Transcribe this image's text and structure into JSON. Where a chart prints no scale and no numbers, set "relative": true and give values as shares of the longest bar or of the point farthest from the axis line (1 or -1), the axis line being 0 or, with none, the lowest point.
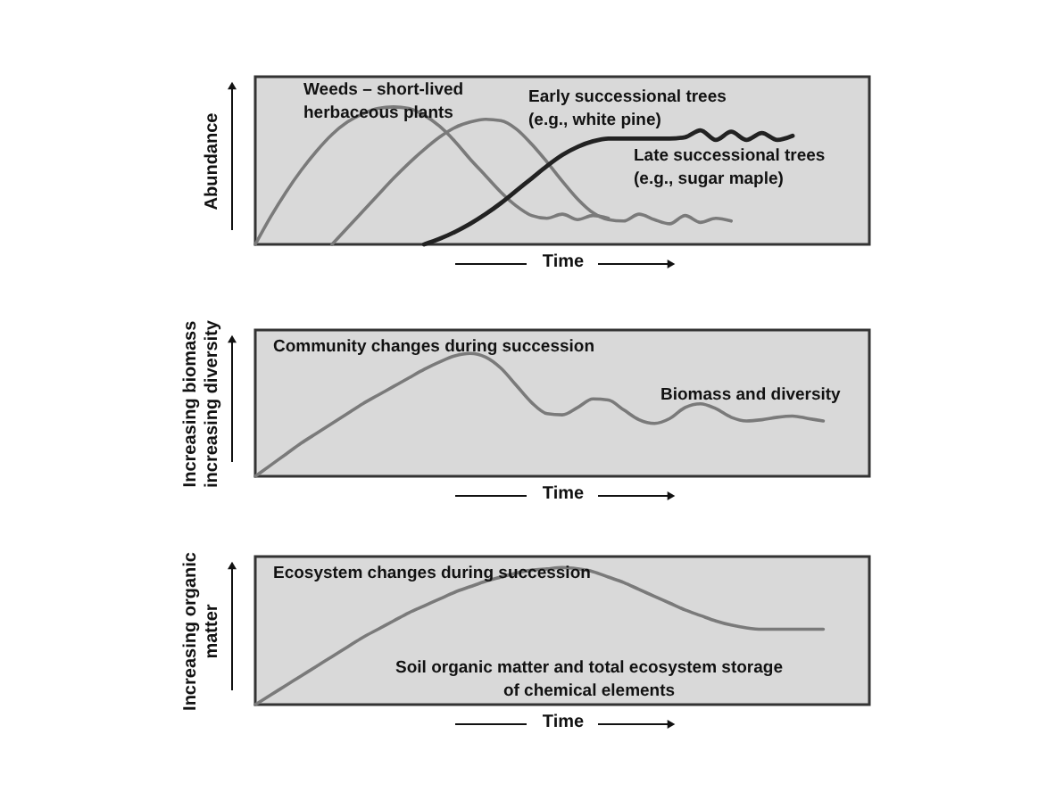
{
  "chart_data": [
    {
      "type": "line",
      "relative": true,
      "tick_labels": false,
      "xlabel": "Time",
      "ylabel": "Abundance",
      "categories": [
        null,
        null,
        null,
        null,
        null,
        null,
        null,
        null,
        null,
        null,
        null,
        null,
        null,
        null,
        null,
        null,
        null,
        null,
        null,
        null,
        null,
        null,
        null,
        null,
        null,
        null,
        null,
        null,
        null,
        null,
        null,
        null,
        null,
        null,
        null,
        null,
        null,
        null,
        null,
        null,
        null
      ],
      "series": [
        {
          "name": "Weeds – short-lived\nherbaceous plants",
          "color": "#7a7a7a",
          "values": [
            0,
            0.2,
            0.38,
            0.54,
            0.68,
            0.8,
            0.89,
            0.95,
            0.99,
            1.0,
            0.99,
            0.94,
            0.86,
            0.75,
            0.62,
            0.5,
            0.38,
            0.28,
            0.21,
            0.19,
            0.22,
            0.18,
            0.21,
            0.19,
            null,
            null,
            null,
            null,
            null,
            null,
            null,
            null,
            null,
            null,
            null,
            null,
            null,
            null,
            null,
            null,
            null
          ]
        },
        {
          "name": "Early successional trees\n(e.g., white pine)",
          "color": "#7a7a7a",
          "values": [
            null,
            null,
            null,
            null,
            null,
            0,
            0.12,
            0.24,
            0.36,
            0.48,
            0.59,
            0.69,
            0.78,
            0.85,
            0.89,
            0.91,
            0.9,
            0.84,
            0.73,
            0.6,
            0.46,
            0.33,
            0.23,
            0.18,
            0.17,
            0.22,
            0.18,
            0.15,
            0.21,
            0.16,
            0.19,
            0.17,
            null,
            null,
            null,
            null,
            null,
            null,
            null,
            null,
            null
          ]
        },
        {
          "name": "Late successional trees\n(e.g., sugar maple)",
          "color": "#222222",
          "values": [
            null,
            null,
            null,
            null,
            null,
            null,
            null,
            null,
            null,
            null,
            null,
            0,
            0.04,
            0.09,
            0.15,
            0.22,
            0.3,
            0.39,
            0.48,
            0.57,
            0.65,
            0.71,
            0.75,
            0.77,
            0.77,
            0.77,
            0.77,
            0.77,
            0.78,
            0.83,
            0.76,
            0.82,
            0.76,
            0.81,
            0.76,
            0.79,
            null,
            null,
            null,
            null,
            null
          ]
        }
      ]
    },
    {
      "type": "line",
      "relative": true,
      "tick_labels": false,
      "title": "Community changes during succession",
      "xlabel": "Time",
      "ylabel": "Increasing biomass\nincreasing diversity",
      "categories": [
        null,
        null,
        null,
        null,
        null,
        null,
        null,
        null,
        null,
        null,
        null,
        null,
        null,
        null,
        null,
        null,
        null,
        null,
        null,
        null,
        null,
        null,
        null,
        null,
        null,
        null,
        null,
        null,
        null,
        null,
        null,
        null,
        null,
        null,
        null,
        null,
        null,
        null,
        null,
        null,
        null
      ],
      "series": [
        {
          "name": "Biomass and diversity",
          "color": "#7a7a7a",
          "values": [
            0,
            0.09,
            0.18,
            0.27,
            0.35,
            0.43,
            0.51,
            0.59,
            0.66,
            0.73,
            0.8,
            0.87,
            0.93,
            0.98,
            1.0,
            0.97,
            0.88,
            0.74,
            0.6,
            0.51,
            0.5,
            0.56,
            0.63,
            0.62,
            0.54,
            0.46,
            0.43,
            0.47,
            0.56,
            0.59,
            0.55,
            0.48,
            0.45,
            0.46,
            0.48,
            0.49,
            0.47,
            0.45,
            null,
            null,
            null
          ]
        }
      ]
    },
    {
      "type": "line",
      "relative": true,
      "tick_labels": false,
      "title": "Ecosystem changes during succession",
      "xlabel": "Time",
      "ylabel": "Increasing organic\nmatter",
      "categories": [
        null,
        null,
        null,
        null,
        null,
        null,
        null,
        null,
        null,
        null,
        null,
        null,
        null,
        null,
        null,
        null,
        null,
        null,
        null,
        null,
        null,
        null,
        null,
        null,
        null,
        null,
        null,
        null,
        null,
        null,
        null,
        null,
        null,
        null,
        null,
        null,
        null,
        null,
        null,
        null,
        null
      ],
      "series": [
        {
          "name": "Soil organic matter and total ecosystem storage\nof chemical elements",
          "color": "#7a7a7a",
          "values": [
            0,
            0.07,
            0.14,
            0.21,
            0.28,
            0.35,
            0.42,
            0.49,
            0.55,
            0.61,
            0.67,
            0.72,
            0.77,
            0.82,
            0.86,
            0.9,
            0.93,
            0.96,
            0.98,
            0.99,
            1.0,
            0.99,
            0.97,
            0.93,
            0.89,
            0.84,
            0.79,
            0.74,
            0.69,
            0.65,
            0.61,
            0.58,
            0.56,
            0.55,
            0.55,
            0.55,
            0.55,
            0.55,
            null,
            null,
            null
          ]
        }
      ]
    }
  ]
}
